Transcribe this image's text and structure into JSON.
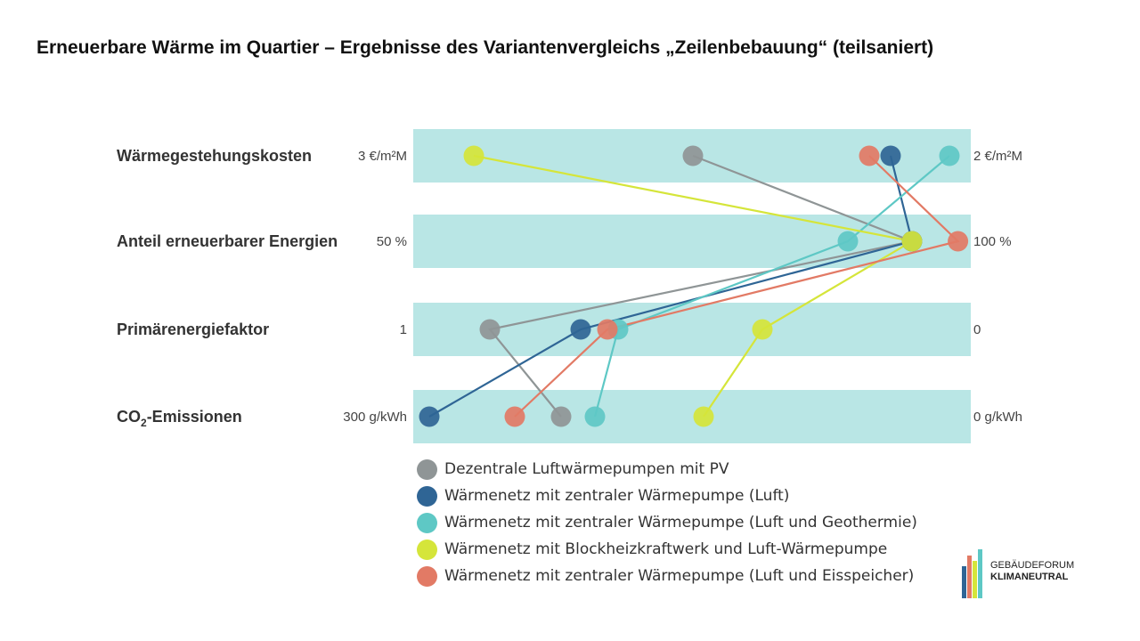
{
  "title": "Erneuerbare Wärme im Quartier – Ergebnisse des Variantenvergleichs „Zeilenbebauung“ (teilsaniert)",
  "chart_data": {
    "type": "parallel-coordinates",
    "band_color": "#b9e6e5",
    "axes": [
      {
        "label": "Wärmegestehungskosten",
        "sub": "",
        "label_after": "",
        "left_tick": "3 €/m²M",
        "right_tick": "2 €/m²M",
        "min": 3,
        "max": 2
      },
      {
        "label": "Anteil erneuerbarer Energien",
        "sub": "",
        "label_after": "",
        "left_tick": "50 %",
        "right_tick": "100 %",
        "min": 50,
        "max": 100
      },
      {
        "label": "Primärenergiefaktor",
        "sub": "",
        "label_after": "",
        "left_tick": "1",
        "right_tick": "0",
        "min": 1,
        "max": 0
      },
      {
        "label": "CO",
        "sub": "2",
        "label_after": "-Emissionen",
        "left_tick": "300 g/kWh",
        "right_tick": "0 g/kWh",
        "min": 300,
        "max": 0
      }
    ],
    "series": [
      {
        "name": "Dezentrale Luftwärmepumpen mit PV",
        "color": "#8f9596",
        "values": [
          2.5,
          95.5,
          0.88,
          224
        ]
      },
      {
        "name": "Wärmenetz mit zentraler Wärmepumpe (Luft)",
        "color": "#2f6595",
        "values": [
          2.13,
          95.5,
          0.71,
          298
        ]
      },
      {
        "name": "Wärmenetz mit zentraler Wärmepumpe (Luft und Geothermie)",
        "color": "#5ec8c5",
        "values": [
          2.02,
          89.5,
          0.64,
          205
        ]
      },
      {
        "name": "Wärmenetz mit Blockheizkraftwerk und Luft-Wärmepumpe",
        "color": "#d5e53a",
        "values": [
          2.91,
          95.5,
          0.37,
          144
        ]
      },
      {
        "name": "Wärmenetz mit zentraler Wärmepumpe (Luft und Eisspeicher)",
        "color": "#e27a65",
        "values": [
          2.17,
          99.8,
          0.66,
          250
        ]
      }
    ]
  },
  "logo": {
    "line1": "GEBÄUDEFORUM",
    "line2": "KLIMANEUTRAL",
    "colors": [
      "#2f6595",
      "#e27a65",
      "#d5e53a",
      "#5ec8c5"
    ]
  }
}
